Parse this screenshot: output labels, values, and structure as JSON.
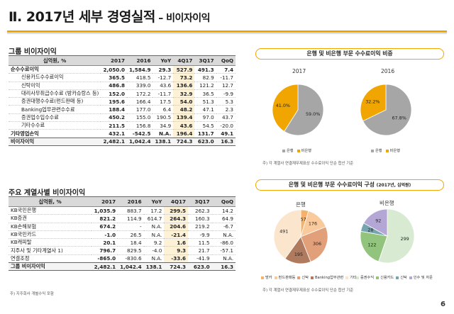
{
  "title": {
    "main": "Ⅱ. 2017년 세부 경영실적",
    "sub": " – 비이자이익"
  },
  "group": {
    "heading": "그룹 비이자이익",
    "unit_label": "십억원, %",
    "columns": [
      "2017",
      "2016",
      "YoY",
      "4Q17",
      "3Q17",
      "QoQ"
    ],
    "rows": [
      {
        "label": "순수수료이익",
        "v": [
          "2,050.0",
          "1,584.9",
          "29.3",
          "527.9",
          "491.3",
          "7.4"
        ],
        "style": "bold"
      },
      {
        "label": "신용카드수수료이익",
        "v": [
          "365.5",
          "418.5",
          "-12.7",
          "73.2",
          "82.9",
          "-11.7"
        ],
        "style": "ind"
      },
      {
        "label": "신탁이익",
        "v": [
          "486.8",
          "339.0",
          "43.6",
          "136.6",
          "121.2",
          "12.7"
        ],
        "style": "ind"
      },
      {
        "label": "대리사무취급수수료 (방카슈랑스 등)",
        "v": [
          "152.0",
          "172.2",
          "-11.7",
          "32.9",
          "36.5",
          "-9.9"
        ],
        "style": "ind"
      },
      {
        "label": "증권대행수수료(펀드판매 등)",
        "v": [
          "195.6",
          "166.4",
          "17.5",
          "54.0",
          "51.3",
          "5.3"
        ],
        "style": "ind"
      },
      {
        "label": "Banking업무관련수수료",
        "v": [
          "188.4",
          "177.0",
          "6.4",
          "48.2",
          "47.1",
          "2.3"
        ],
        "style": "ind"
      },
      {
        "label": "증권업수입수수료",
        "v": [
          "450.2",
          "155.0",
          "190.5",
          "139.4",
          "97.0",
          "43.7"
        ],
        "style": "ind"
      },
      {
        "label": "기타수수료",
        "v": [
          "211.5",
          "156.8",
          "34.9",
          "43.6",
          "54.5",
          "-20.0"
        ],
        "style": "ind"
      },
      {
        "label": "기타영업손익",
        "v": [
          "432.1",
          "-542.5",
          "N.A.",
          "196.4",
          "131.7",
          "49.1"
        ],
        "style": "bold"
      },
      {
        "label": "비이자이익",
        "v": [
          "2,482.1",
          "1,042.4",
          "138.1",
          "724.3",
          "623.0",
          "16.3"
        ],
        "style": "total"
      }
    ]
  },
  "affiliates": {
    "heading": "주요 계열사별 비이자이익",
    "unit_label": "십억원, %",
    "columns": [
      "2017",
      "2016",
      "YoY",
      "4Q17",
      "3Q17",
      "QoQ"
    ],
    "rows": [
      {
        "label": "KB국민은행",
        "v": [
          "1,035.9",
          "883.7",
          "17.2",
          "299.5",
          "262.3",
          "14.2"
        ]
      },
      {
        "label": "KB증권",
        "v": [
          "821.2",
          "114.9",
          "614.7",
          "264.3",
          "160.3",
          "64.9"
        ]
      },
      {
        "label": "KB손해보험",
        "v": [
          "674.2",
          "-",
          "N.A.",
          "204.6",
          "219.2",
          "-6.7"
        ]
      },
      {
        "label": "KB국민카드",
        "v": [
          "-1.0",
          "26.5",
          "N.A.",
          "-21.4",
          "-9.9",
          "N.A."
        ]
      },
      {
        "label": "KB캐피탈",
        "v": [
          "20.1",
          "18.4",
          "9.2",
          "1.6",
          "11.5",
          "-86.0"
        ]
      },
      {
        "label": "지주사 및 기타계열사 1)",
        "v": [
          "796.7",
          "829.5",
          "-4.0",
          "9.3",
          "21.7",
          "-57.1"
        ]
      },
      {
        "label": "연결조정",
        "v": [
          "-865.0",
          "-830.6",
          "N.A.",
          "-33.6",
          "-41.9",
          "N.A."
        ]
      },
      {
        "label": "그룹 비이자이익",
        "v": [
          "2,482.1",
          "1,042.4",
          "138.1",
          "724.3",
          "623.0",
          "16.3"
        ],
        "style": "total"
      }
    ],
    "footnote": "주) 지주회사 개별수익 포함"
  },
  "panel1": {
    "header": "은행 및 비은행 부문 수수료이익 비중",
    "pies": [
      {
        "year": "2017",
        "slices": [
          {
            "name": "은행",
            "value": 59.0,
            "label": "59.0%"
          },
          {
            "name": "비은행",
            "value": 41.0,
            "label": "41.0%"
          }
        ]
      },
      {
        "year": "2016",
        "slices": [
          {
            "name": "은행",
            "value": 67.8,
            "label": "67.8%"
          },
          {
            "name": "비은행",
            "value": 32.2,
            "label": "32.2%"
          }
        ]
      }
    ],
    "legend": [
      "은행",
      "비은행"
    ],
    "note": "주) 각 계열사 연결재무제표상 수수료이익 단순 합산 기준"
  },
  "panel2": {
    "header": "은행 및 비은행 부문 수수료이익 구성",
    "header_unit": "(2017년, 십억원)",
    "bank": {
      "title": "은행",
      "slices": [
        {
          "name": "방카",
          "value": 57
        },
        {
          "name": "펀드판매등",
          "value": 176
        },
        {
          "name": "신탁",
          "value": 306
        },
        {
          "name": "Banking업무관련",
          "value": 195
        },
        {
          "name": "기타",
          "value": 491
        }
      ]
    },
    "nonbank": {
      "title": "비은행",
      "slices": [
        {
          "name": "증권수익",
          "value": 299
        },
        {
          "name": "신용카드",
          "value": 122
        },
        {
          "name": "신탁",
          "value": 28
        },
        {
          "name": "인수 및 자문",
          "value": 92
        }
      ]
    },
    "legend_bank": [
      "방카",
      "펀드판매등",
      "신탁",
      "Banking업무관련",
      "기타"
    ],
    "legend_nonbank": [
      "증권수익",
      "신용카드",
      "신탁",
      "인수 및 자문"
    ],
    "note": "주) 각 계열사 연결재무제표상 수수료이익 단순 합산 기준"
  },
  "colors": {
    "accent": "#f0a500",
    "grey": "#a6a6a6",
    "bank": [
      "#f6b26b",
      "#f9cb9c",
      "#e2a07a",
      "#b07a5e",
      "#fce5cd"
    ],
    "nonbank": [
      "#d9ead3",
      "#93c47d",
      "#76a5af",
      "#b4a7d6"
    ]
  },
  "page_number": "6"
}
